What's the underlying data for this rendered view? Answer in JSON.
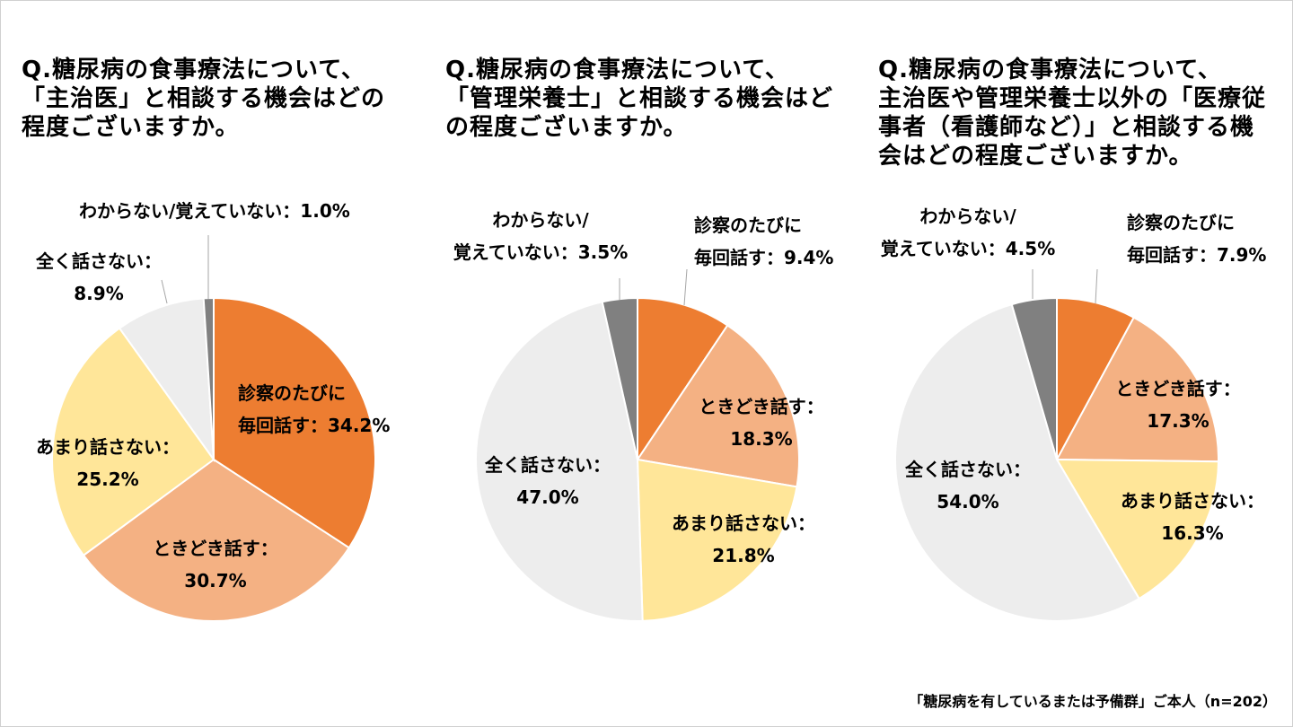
{
  "chart_data": [
    {
      "type": "pie",
      "title_lines": [
        "Q.糖尿病の食事療法について、",
        "「主治医」と相談する機会はどの",
        "程度ございますか。"
      ],
      "slices": [
        {
          "label_lines": [
            "診察のたびに",
            "毎回話す：34.2%"
          ],
          "value": 34.2,
          "color": "#ED7D31"
        },
        {
          "label_lines": [
            "ときどき話す：",
            "30.7%"
          ],
          "value": 30.7,
          "color": "#F4B183"
        },
        {
          "label_lines": [
            "あまり話さない：",
            "25.2%"
          ],
          "value": 25.2,
          "color": "#FFE699"
        },
        {
          "label_lines": [
            "全く話さない：",
            "8.9%"
          ],
          "value": 8.9,
          "color": "#EDEDED"
        },
        {
          "label_lines": [
            "わからない/覚えていない：1.0%"
          ],
          "value": 1.0,
          "color": "#808080"
        }
      ]
    },
    {
      "type": "pie",
      "title_lines": [
        "Q.糖尿病の食事療法について、",
        "「管理栄養士」と相談する機会はど",
        "の程度ございますか。"
      ],
      "slices": [
        {
          "label_lines": [
            "診察のたびに",
            "毎回話す：9.4%"
          ],
          "value": 9.4,
          "color": "#ED7D31"
        },
        {
          "label_lines": [
            "ときどき話す：",
            "18.3%"
          ],
          "value": 18.3,
          "color": "#F4B183"
        },
        {
          "label_lines": [
            "あまり話さない：",
            "21.8%"
          ],
          "value": 21.8,
          "color": "#FFE699"
        },
        {
          "label_lines": [
            "全く話さない：",
            "47.0%"
          ],
          "value": 47.0,
          "color": "#EDEDED"
        },
        {
          "label_lines": [
            "わからない/",
            "覚えていない：3.5%"
          ],
          "value": 3.5,
          "color": "#808080"
        }
      ]
    },
    {
      "type": "pie",
      "title_lines": [
        "Q.糖尿病の食事療法について、",
        "主治医や管理栄養士以外の「医療従",
        "事者（看護師など）」と相談する機",
        "会はどの程度ございますか。"
      ],
      "slices": [
        {
          "label_lines": [
            "診察のたびに",
            "毎回話す：7.9%"
          ],
          "value": 7.9,
          "color": "#ED7D31"
        },
        {
          "label_lines": [
            "ときどき話す：",
            "17.3%"
          ],
          "value": 17.3,
          "color": "#F4B183"
        },
        {
          "label_lines": [
            "あまり話さない：",
            "16.3%"
          ],
          "value": 16.3,
          "color": "#FFE699"
        },
        {
          "label_lines": [
            "全く話さない：",
            "54.0%"
          ],
          "value": 54.0,
          "color": "#EDEDED"
        },
        {
          "label_lines": [
            "わからない/",
            "覚えていない：4.5%"
          ],
          "value": 4.5,
          "color": "#808080"
        }
      ]
    }
  ],
  "footnote": "「糖尿病を有しているまたは予備群」ご本人（n=202）"
}
